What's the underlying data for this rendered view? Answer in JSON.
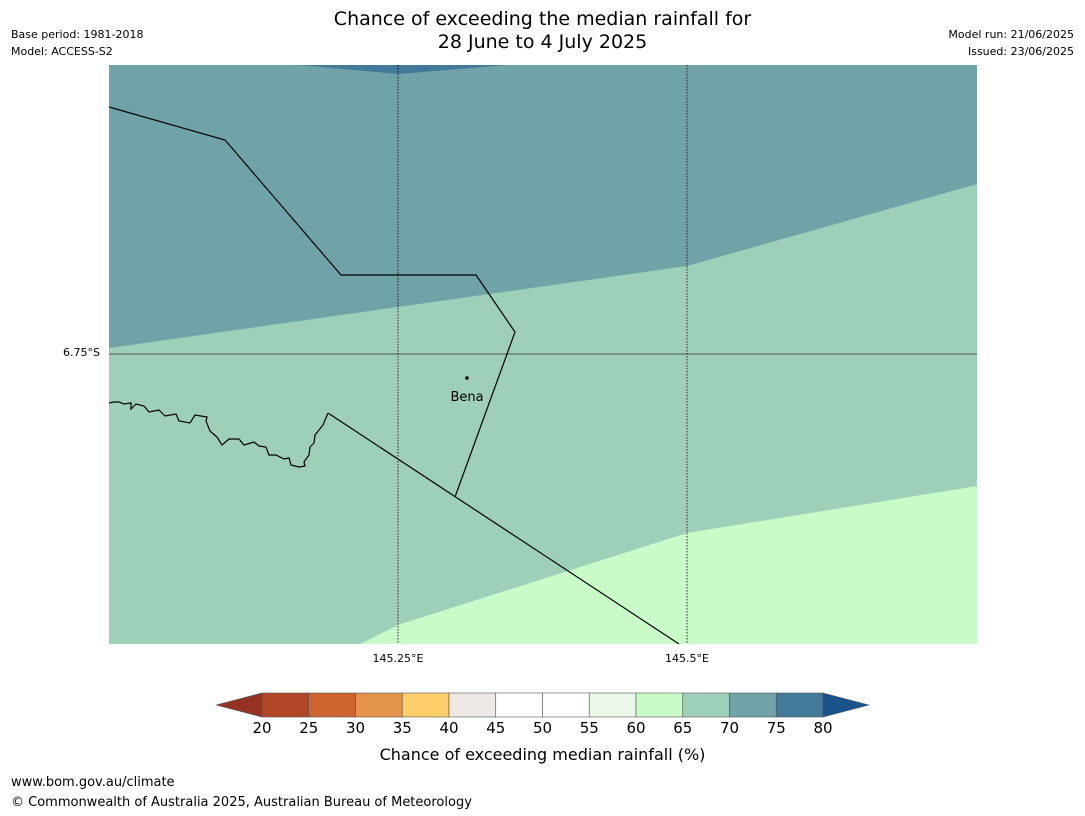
{
  "header": {
    "title_line1": "Chance of exceeding the median rainfall for",
    "title_line2": "28 June to 4 July 2025",
    "base_period": "Base period: 1981-2018",
    "model": "Model: ACCESS-S2",
    "model_run": "Model run: 21/06/2025",
    "issued": "Issued: 23/06/2025"
  },
  "map": {
    "place_label": "Bena",
    "lat_label": "6.75°S",
    "lon_labels": [
      "145.25°E",
      "145.5°E"
    ],
    "zone_colors": {
      "band_75_80": "#437999",
      "band_70_75": "#6fa3a7",
      "band_65_70": "#9dcfb9",
      "band_60_65": "#c8fbc8"
    }
  },
  "colorbar": {
    "label": "Chance of exceeding median rainfall (%)",
    "ticks": [
      "20",
      "25",
      "30",
      "35",
      "40",
      "45",
      "50",
      "55",
      "60",
      "65",
      "70",
      "75",
      "80"
    ],
    "low_extend_color": "#943324",
    "high_extend_color": "#1a528a",
    "bin_colors": [
      "#b04626",
      "#cf6431",
      "#e3944a",
      "#fece6a",
      "#ede8e4",
      "#ffffff",
      "#ffffff",
      "#eaf7e9",
      "#c8fbc8",
      "#9dcfb9",
      "#6fa3a7",
      "#437999"
    ]
  },
  "footer": {
    "url": "www.bom.gov.au/climate",
    "copyright": "© Commonwealth of Australia 2025, Australian Bureau of Meteorology"
  }
}
